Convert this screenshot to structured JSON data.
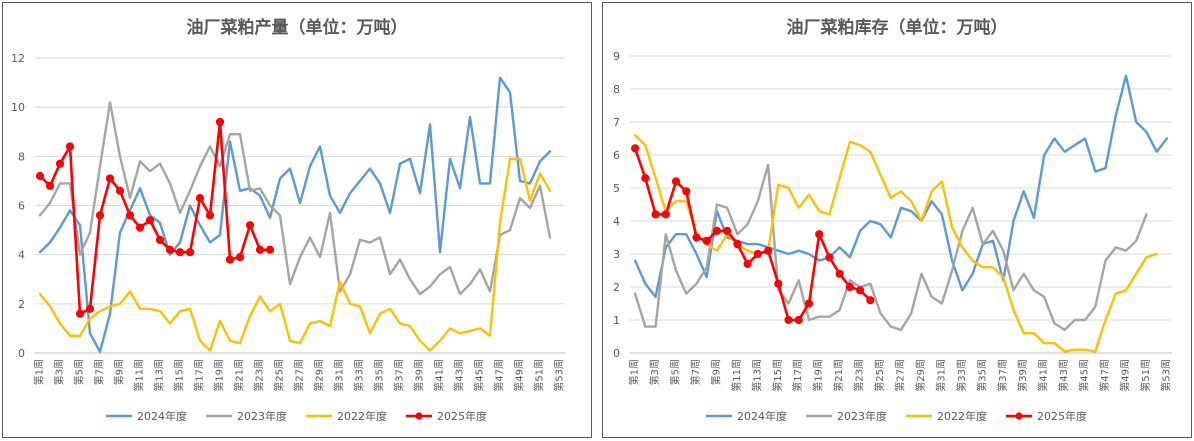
{
  "chart_data": [
    {
      "type": "line",
      "title": "油厂菜粕产量（单位：万吨）",
      "x_categories": [
        "第1周",
        "第2周",
        "第3周",
        "第4周",
        "第5周",
        "第6周",
        "第7周",
        "第8周",
        "第9周",
        "第10周",
        "第11周",
        "第12周",
        "第13周",
        "第14周",
        "第15周",
        "第16周",
        "第17周",
        "第18周",
        "第19周",
        "第20周",
        "第21周",
        "第22周",
        "第23周",
        "第24周",
        "第25周",
        "第26周",
        "第27周",
        "第28周",
        "第29周",
        "第30周",
        "第31周",
        "第32周",
        "第33周",
        "第34周",
        "第35周",
        "第36周",
        "第37周",
        "第38周",
        "第39周",
        "第40周",
        "第41周",
        "第42周",
        "第43周",
        "第44周",
        "第45周",
        "第46周",
        "第47周",
        "第48周",
        "第49周",
        "第50周",
        "第51周",
        "第52周",
        "第53周"
      ],
      "x_tick_labels": [
        "第1周",
        "第3周",
        "第5周",
        "第7周",
        "第9周",
        "第11周",
        "第13周",
        "第15周",
        "第17周",
        "第19周",
        "第21周",
        "第23周",
        "第25周",
        "第27周",
        "第29周",
        "第31周",
        "第33周",
        "第35周",
        "第37周",
        "第39周",
        "第41周",
        "第43周",
        "第45周",
        "第47周",
        "第49周",
        "第51周",
        "第53周"
      ],
      "y_ticks": [
        "0",
        "2",
        "4",
        "6",
        "8",
        "10",
        "12"
      ],
      "ylim": [
        0,
        12
      ],
      "grid": true,
      "legend_position": "bottom",
      "series": [
        {
          "name": "2024年度",
          "color": "#5B9BD5",
          "markers": false,
          "values": [
            4.1,
            4.5,
            5.1,
            5.8,
            5.2,
            0.8,
            0.05,
            1.6,
            4.9,
            5.8,
            6.7,
            5.6,
            5.3,
            4.0,
            4.5,
            6.0,
            5.2,
            4.5,
            4.8,
            8.6,
            6.6,
            6.7,
            6.4,
            5.5,
            7.1,
            7.5,
            6.1,
            7.6,
            8.4,
            6.4,
            5.7,
            6.5,
            7.0,
            7.5,
            6.9,
            5.7,
            7.7,
            7.9,
            6.5,
            9.3,
            4.1,
            7.9,
            6.7,
            9.6,
            6.9,
            6.9,
            11.2,
            10.6,
            7.0,
            6.9,
            7.8,
            8.2,
            null
          ]
        },
        {
          "name": "2023年度",
          "color": "#A5A5A5",
          "markers": false,
          "values": [
            5.6,
            6.1,
            6.9,
            6.9,
            4.0,
            4.9,
            7.6,
            10.2,
            8.0,
            6.3,
            7.8,
            7.4,
            7.7,
            6.9,
            5.7,
            6.6,
            7.6,
            8.4,
            7.6,
            8.9,
            8.9,
            6.6,
            6.7,
            6.0,
            5.6,
            2.8,
            3.9,
            4.7,
            3.9,
            5.7,
            2.5,
            3.2,
            4.6,
            4.5,
            4.7,
            3.2,
            3.8,
            3.0,
            2.4,
            2.7,
            3.2,
            3.5,
            2.4,
            2.8,
            3.4,
            2.5,
            4.8,
            5.0,
            6.3,
            5.9,
            6.8,
            4.7,
            null
          ]
        },
        {
          "name": "2022年度",
          "color": "#FFC000",
          "markers": false,
          "values": [
            2.4,
            1.9,
            1.2,
            0.7,
            0.7,
            1.4,
            1.7,
            1.9,
            2.0,
            2.5,
            1.8,
            1.8,
            1.7,
            1.2,
            1.7,
            1.8,
            0.5,
            0.1,
            1.3,
            0.5,
            0.4,
            1.5,
            2.3,
            1.7,
            2.0,
            0.5,
            0.4,
            1.2,
            1.3,
            1.1,
            2.9,
            2.0,
            1.9,
            0.8,
            1.6,
            1.8,
            1.2,
            1.1,
            0.5,
            0.1,
            0.5,
            1.0,
            0.8,
            0.9,
            1.0,
            0.7,
            5.3,
            7.9,
            7.9,
            6.2,
            7.3,
            6.6,
            null
          ]
        },
        {
          "name": "2025年度",
          "color": "#FF0000",
          "markers": true,
          "values": [
            7.2,
            6.8,
            7.7,
            8.4,
            1.6,
            1.8,
            5.6,
            7.1,
            6.6,
            5.6,
            5.1,
            5.4,
            4.6,
            4.2,
            4.1,
            4.1,
            6.3,
            5.6,
            9.4,
            3.8,
            3.9,
            5.2,
            4.2,
            4.2,
            null,
            null,
            null,
            null,
            null,
            null,
            null,
            null,
            null,
            null,
            null,
            null,
            null,
            null,
            null,
            null,
            null,
            null,
            null,
            null,
            null,
            null,
            null,
            null,
            null,
            null,
            null,
            null,
            null
          ]
        }
      ]
    },
    {
      "type": "line",
      "title": "油厂菜粕库存（单位：万吨）",
      "x_categories": [
        "第1周",
        "第2周",
        "第3周",
        "第4周",
        "第5周",
        "第6周",
        "第7周",
        "第8周",
        "第9周",
        "第10周",
        "第11周",
        "第12周",
        "第13周",
        "第14周",
        "第15周",
        "第16周",
        "第17周",
        "第18周",
        "第19周",
        "第20周",
        "第21周",
        "第22周",
        "第23周",
        "第24周",
        "第25周",
        "第26周",
        "第27周",
        "第28周",
        "第29周",
        "第30周",
        "第31周",
        "第32周",
        "第33周",
        "第34周",
        "第35周",
        "第36周",
        "第37周",
        "第38周",
        "第39周",
        "第40周",
        "第41周",
        "第42周",
        "第43周",
        "第44周",
        "第45周",
        "第46周",
        "第47周",
        "第48周",
        "第49周",
        "第50周",
        "第51周",
        "第52周",
        "第53周"
      ],
      "x_tick_labels": [
        "第1周",
        "第3周",
        "第5周",
        "第7周",
        "第9周",
        "第11周",
        "第13周",
        "第15周",
        "第17周",
        "第19周",
        "第21周",
        "第23周",
        "第25周",
        "第27周",
        "第29周",
        "第31周",
        "第33周",
        "第35周",
        "第37周",
        "第39周",
        "第41周",
        "第43周",
        "第45周",
        "第47周",
        "第49周",
        "第51周",
        "第53周"
      ],
      "y_ticks": [
        "0",
        "1",
        "2",
        "3",
        "4",
        "5",
        "6",
        "7",
        "8",
        "9"
      ],
      "ylim": [
        0,
        9
      ],
      "grid": true,
      "legend_position": "bottom",
      "series": [
        {
          "name": "2024年度",
          "color": "#5B9BD5",
          "markers": false,
          "values": [
            2.8,
            2.1,
            1.7,
            3.2,
            3.6,
            3.6,
            3.0,
            2.3,
            4.3,
            3.5,
            3.4,
            3.3,
            3.3,
            3.2,
            3.1,
            3.0,
            3.1,
            3.0,
            2.8,
            2.9,
            3.2,
            2.9,
            3.7,
            4.0,
            3.9,
            3.5,
            4.4,
            4.3,
            4.0,
            4.6,
            4.2,
            2.8,
            1.9,
            2.4,
            3.3,
            3.4,
            2.2,
            4.0,
            4.9,
            4.1,
            6.0,
            6.5,
            6.1,
            6.3,
            6.5,
            5.5,
            5.6,
            7.2,
            8.4,
            7.0,
            6.7,
            6.1,
            6.5
          ]
        },
        {
          "name": "2023年度",
          "color": "#A5A5A5",
          "markers": false,
          "values": [
            1.8,
            0.8,
            0.8,
            3.6,
            2.5,
            1.8,
            2.1,
            2.6,
            4.5,
            4.4,
            3.6,
            3.9,
            4.6,
            5.7,
            1.9,
            1.5,
            2.2,
            1.0,
            1.1,
            1.1,
            1.3,
            2.2,
            2.0,
            2.1,
            1.2,
            0.8,
            0.7,
            1.2,
            2.4,
            1.7,
            1.5,
            2.5,
            3.7,
            4.4,
            3.3,
            3.7,
            3.1,
            1.9,
            2.4,
            1.9,
            1.7,
            0.9,
            0.7,
            1.0,
            1.0,
            1.4,
            2.8,
            3.2,
            3.1,
            3.4,
            4.2,
            null,
            null
          ]
        },
        {
          "name": "2022年度",
          "color": "#FFC000",
          "markers": false,
          "values": [
            6.6,
            6.3,
            5.3,
            4.3,
            4.6,
            4.6,
            3.6,
            3.3,
            3.1,
            3.6,
            3.3,
            3.1,
            3.0,
            3.1,
            5.1,
            5.0,
            4.4,
            4.8,
            4.3,
            4.2,
            5.3,
            6.4,
            6.3,
            6.1,
            5.4,
            4.7,
            4.9,
            4.6,
            4.0,
            4.9,
            5.2,
            3.8,
            3.2,
            2.8,
            2.6,
            2.6,
            2.3,
            1.3,
            0.6,
            0.6,
            0.3,
            0.3,
            0.05,
            0.1,
            0.1,
            0.05,
            1.0,
            1.8,
            1.9,
            2.4,
            2.9,
            3.0,
            null
          ]
        },
        {
          "name": "2025年度",
          "color": "#FF0000",
          "markers": true,
          "values": [
            6.2,
            5.3,
            4.2,
            4.2,
            5.2,
            4.9,
            3.5,
            3.4,
            3.7,
            3.7,
            3.3,
            2.7,
            3.0,
            3.1,
            2.1,
            1.0,
            1.0,
            1.5,
            3.6,
            2.9,
            2.4,
            2.0,
            1.9,
            1.6,
            null,
            null,
            null,
            null,
            null,
            null,
            null,
            null,
            null,
            null,
            null,
            null,
            null,
            null,
            null,
            null,
            null,
            null,
            null,
            null,
            null,
            null,
            null,
            null,
            null,
            null,
            null,
            null,
            null
          ]
        }
      ]
    }
  ]
}
